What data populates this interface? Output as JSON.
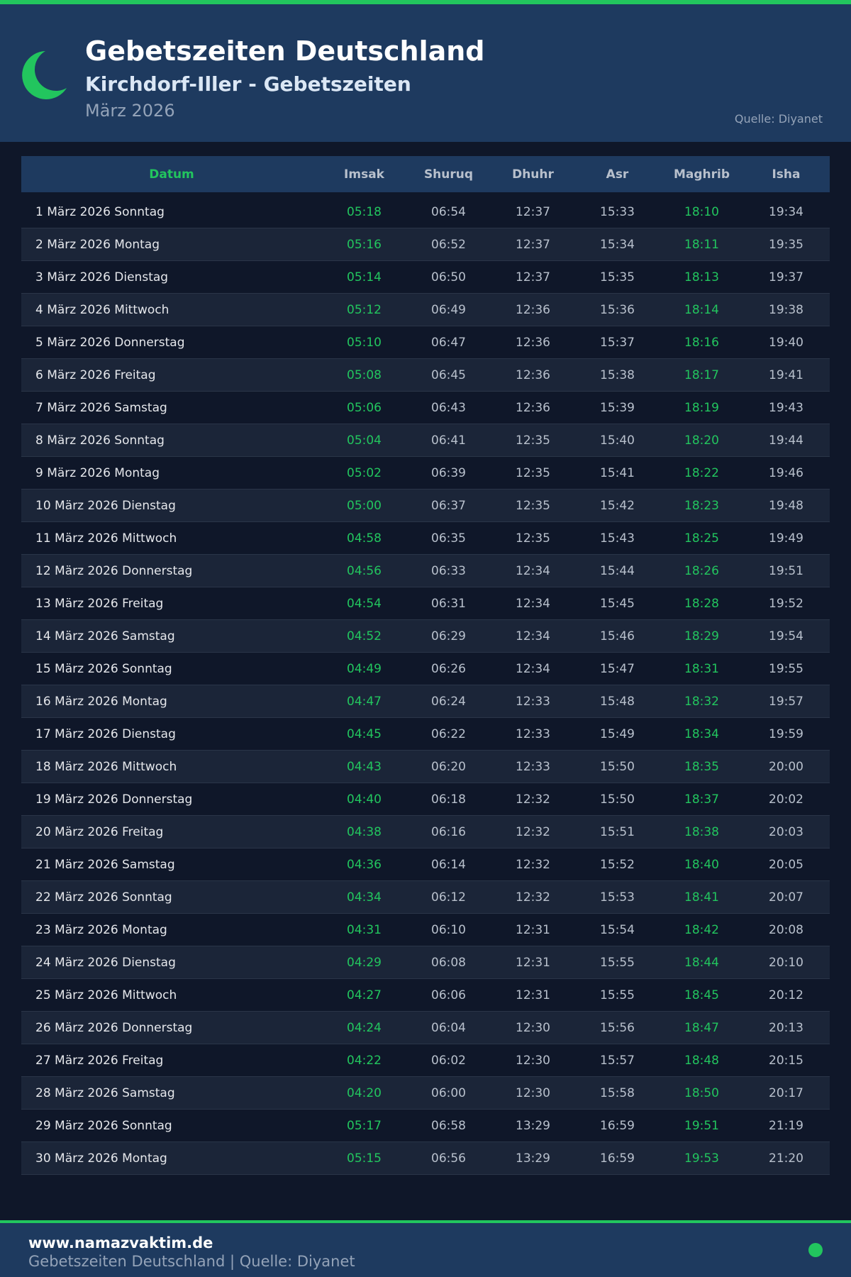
{
  "header": {
    "title": "Gebetszeiten Deutschland",
    "subtitle": "Kirchdorf-Iller - Gebetszeiten",
    "month": "März 2026",
    "source": "Quelle: Diyanet"
  },
  "colors": {
    "accent": "#22c55e",
    "header_bg": "#1e3a5f",
    "page_bg": "#0f1729"
  },
  "table": {
    "columns": [
      "Datum",
      "Imsak",
      "Shuruq",
      "Dhuhr",
      "Asr",
      "Maghrib",
      "Isha"
    ],
    "rows": [
      [
        "1 März 2026 Sonntag",
        "05:18",
        "06:54",
        "12:37",
        "15:33",
        "18:10",
        "19:34"
      ],
      [
        "2 März 2026 Montag",
        "05:16",
        "06:52",
        "12:37",
        "15:34",
        "18:11",
        "19:35"
      ],
      [
        "3 März 2026 Dienstag",
        "05:14",
        "06:50",
        "12:37",
        "15:35",
        "18:13",
        "19:37"
      ],
      [
        "4 März 2026 Mittwoch",
        "05:12",
        "06:49",
        "12:36",
        "15:36",
        "18:14",
        "19:38"
      ],
      [
        "5 März 2026 Donnerstag",
        "05:10",
        "06:47",
        "12:36",
        "15:37",
        "18:16",
        "19:40"
      ],
      [
        "6 März 2026 Freitag",
        "05:08",
        "06:45",
        "12:36",
        "15:38",
        "18:17",
        "19:41"
      ],
      [
        "7 März 2026 Samstag",
        "05:06",
        "06:43",
        "12:36",
        "15:39",
        "18:19",
        "19:43"
      ],
      [
        "8 März 2026 Sonntag",
        "05:04",
        "06:41",
        "12:35",
        "15:40",
        "18:20",
        "19:44"
      ],
      [
        "9 März 2026 Montag",
        "05:02",
        "06:39",
        "12:35",
        "15:41",
        "18:22",
        "19:46"
      ],
      [
        "10 März 2026 Dienstag",
        "05:00",
        "06:37",
        "12:35",
        "15:42",
        "18:23",
        "19:48"
      ],
      [
        "11 März 2026 Mittwoch",
        "04:58",
        "06:35",
        "12:35",
        "15:43",
        "18:25",
        "19:49"
      ],
      [
        "12 März 2026 Donnerstag",
        "04:56",
        "06:33",
        "12:34",
        "15:44",
        "18:26",
        "19:51"
      ],
      [
        "13 März 2026 Freitag",
        "04:54",
        "06:31",
        "12:34",
        "15:45",
        "18:28",
        "19:52"
      ],
      [
        "14 März 2026 Samstag",
        "04:52",
        "06:29",
        "12:34",
        "15:46",
        "18:29",
        "19:54"
      ],
      [
        "15 März 2026 Sonntag",
        "04:49",
        "06:26",
        "12:34",
        "15:47",
        "18:31",
        "19:55"
      ],
      [
        "16 März 2026 Montag",
        "04:47",
        "06:24",
        "12:33",
        "15:48",
        "18:32",
        "19:57"
      ],
      [
        "17 März 2026 Dienstag",
        "04:45",
        "06:22",
        "12:33",
        "15:49",
        "18:34",
        "19:59"
      ],
      [
        "18 März 2026 Mittwoch",
        "04:43",
        "06:20",
        "12:33",
        "15:50",
        "18:35",
        "20:00"
      ],
      [
        "19 März 2026 Donnerstag",
        "04:40",
        "06:18",
        "12:32",
        "15:50",
        "18:37",
        "20:02"
      ],
      [
        "20 März 2026 Freitag",
        "04:38",
        "06:16",
        "12:32",
        "15:51",
        "18:38",
        "20:03"
      ],
      [
        "21 März 2026 Samstag",
        "04:36",
        "06:14",
        "12:32",
        "15:52",
        "18:40",
        "20:05"
      ],
      [
        "22 März 2026 Sonntag",
        "04:34",
        "06:12",
        "12:32",
        "15:53",
        "18:41",
        "20:07"
      ],
      [
        "23 März 2026 Montag",
        "04:31",
        "06:10",
        "12:31",
        "15:54",
        "18:42",
        "20:08"
      ],
      [
        "24 März 2026 Dienstag",
        "04:29",
        "06:08",
        "12:31",
        "15:55",
        "18:44",
        "20:10"
      ],
      [
        "25 März 2026 Mittwoch",
        "04:27",
        "06:06",
        "12:31",
        "15:55",
        "18:45",
        "20:12"
      ],
      [
        "26 März 2026 Donnerstag",
        "04:24",
        "06:04",
        "12:30",
        "15:56",
        "18:47",
        "20:13"
      ],
      [
        "27 März 2026 Freitag",
        "04:22",
        "06:02",
        "12:30",
        "15:57",
        "18:48",
        "20:15"
      ],
      [
        "28 März 2026 Samstag",
        "04:20",
        "06:00",
        "12:30",
        "15:58",
        "18:50",
        "20:17"
      ],
      [
        "29 März 2026 Sonntag",
        "05:17",
        "06:58",
        "13:29",
        "16:59",
        "19:51",
        "21:19"
      ],
      [
        "30 März 2026 Montag",
        "05:15",
        "06:56",
        "13:29",
        "16:59",
        "19:53",
        "21:20"
      ]
    ]
  },
  "footer": {
    "site": "www.namazvaktim.de",
    "text": "Gebetszeiten Deutschland | Quelle: Diyanet"
  }
}
